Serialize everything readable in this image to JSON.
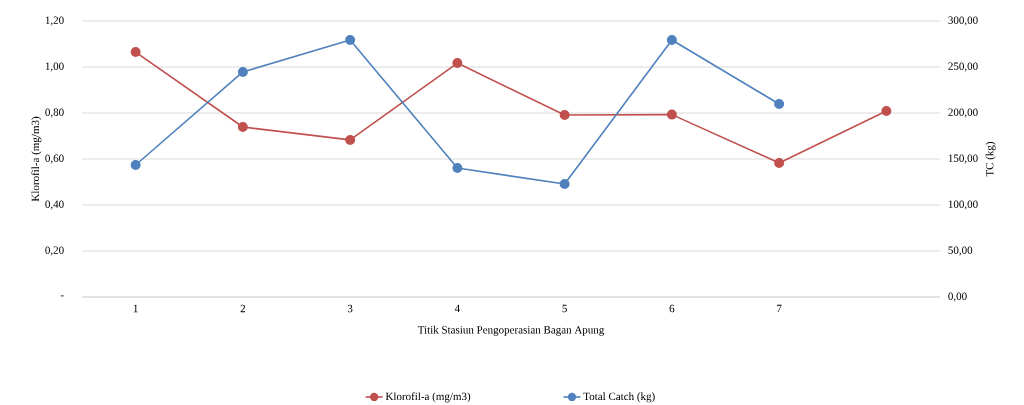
{
  "chart_data": {
    "type": "line",
    "xlabel": "Titik Stasiun Pengoperasian Bagan Apung",
    "ylabel": "Klorofil-a (mg/m3)",
    "y2label": "TC (kg)",
    "categories": [
      "1",
      "2",
      "3",
      "4",
      "5",
      "6",
      "7",
      null
    ],
    "series": [
      {
        "name": "Klorofil-a (mg/m3)",
        "color": "#c0504d",
        "values": [
          1.065,
          0.739,
          0.683,
          1.017,
          0.791,
          0.793,
          0.583,
          0.809
        ]
      },
      {
        "name": "Total Catch (kg)",
        "color": "#4f81bd",
        "axis": "y2",
        "values": [
          143.5,
          244.6,
          279.3,
          140.2,
          122.8,
          279.3,
          209.8,
          null
        ]
      }
    ],
    "ylim": [
      0,
      1.2
    ],
    "yticks": [
      {
        "value": 0,
        "label": "-"
      },
      {
        "value": 0.2,
        "label": "0,20"
      },
      {
        "value": 0.4,
        "label": "0,40"
      },
      {
        "value": 0.6,
        "label": "0,60"
      },
      {
        "value": 0.8,
        "label": "0,80"
      },
      {
        "value": 1.0,
        "label": "1,00"
      },
      {
        "value": 1.2,
        "label": "1,20"
      }
    ],
    "y2lim": [
      0,
      300
    ],
    "y2ticks": [
      {
        "value": 0,
        "label": "0,00"
      },
      {
        "value": 50,
        "label": "50,00"
      },
      {
        "value": 100,
        "label": "100,00"
      },
      {
        "value": 150,
        "label": "150,00"
      },
      {
        "value": 200,
        "label": "200,00"
      },
      {
        "value": 250,
        "label": "250,00"
      },
      {
        "value": 300,
        "label": "300,00"
      }
    ],
    "grid": "y",
    "legend": "bottom",
    "marker": "circle",
    "line_style": "solid"
  }
}
